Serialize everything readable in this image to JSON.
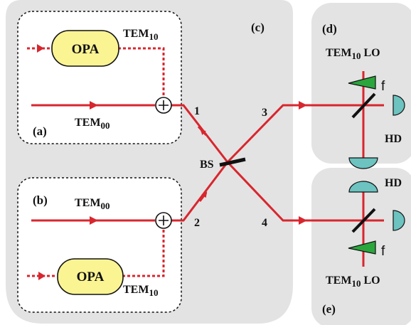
{
  "panels": {
    "a": "(a)",
    "b": "(b)",
    "c": "(c)",
    "d": "(d)",
    "e": "(e)"
  },
  "opa_label": "OPA",
  "mode": {
    "tem_base": "TEM",
    "sub_10": "10",
    "sub_00": "00",
    "lo_suffix": "LO"
  },
  "ports": [
    "1",
    "2",
    "3",
    "4"
  ],
  "bs_label": "BS",
  "hd_label": "HD",
  "f_label": "f",
  "colors": {
    "beam": "#d8262e",
    "panel_bg": "#e3e3e3",
    "opa_fill": "#fbf493",
    "detector": "#6cc3c0",
    "ramp": "#2ba63c",
    "mirror": "#111111"
  }
}
